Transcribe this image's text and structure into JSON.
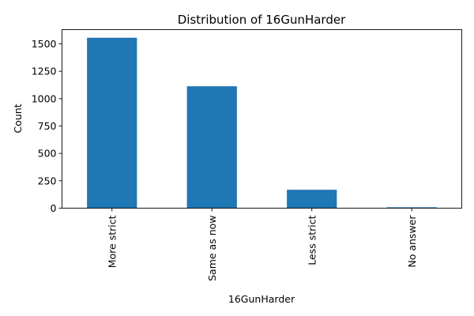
{
  "chart_data": {
    "type": "bar",
    "title": "Distribution of 16GunHarder",
    "xlabel": "16GunHarder",
    "ylabel": "Count",
    "categories": [
      "More strict",
      "Same as now",
      "Less strict",
      "No answer"
    ],
    "values": [
      1556,
      1113,
      168,
      8
    ],
    "ylim": [
      0,
      1630
    ],
    "yticks": [
      0,
      250,
      500,
      750,
      1000,
      1250,
      1500
    ],
    "ytick_labels": [
      "0",
      "250",
      "500",
      "750",
      "1000",
      "1250",
      "1500"
    ],
    "bar_color": "#1f77b4",
    "grid": false,
    "legend": "none"
  }
}
